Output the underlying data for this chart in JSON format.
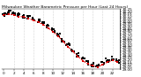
{
  "title": "Milwaukee Weather Barometric Pressure per Hour (Last 24 Hours)",
  "hours": [
    0,
    1,
    2,
    3,
    4,
    5,
    6,
    7,
    8,
    9,
    10,
    11,
    12,
    13,
    14,
    15,
    16,
    17,
    18,
    19,
    20,
    21,
    22,
    23
  ],
  "pressure_black": [
    30.15,
    30.18,
    30.16,
    30.13,
    30.11,
    30.08,
    30.05,
    30.01,
    29.96,
    29.89,
    29.81,
    29.72,
    29.61,
    29.5,
    29.4,
    29.3,
    29.21,
    29.14,
    29.1,
    29.08,
    29.13,
    29.18,
    29.22,
    29.18
  ],
  "pressure_red": [
    30.13,
    30.15,
    30.13,
    30.1,
    30.09,
    30.06,
    30.02,
    29.98,
    29.93,
    29.86,
    29.78,
    29.69,
    29.58,
    29.47,
    29.37,
    29.27,
    29.18,
    29.11,
    29.07,
    29.05,
    29.1,
    29.15,
    29.19,
    29.15
  ],
  "bg_color": "#ffffff",
  "dot_color": "#000000",
  "line_color": "#dd0000",
  "grid_color": "#999999",
  "ylim_min": 29.0,
  "ylim_max": 30.25,
  "xlabel_fontsize": 3.0,
  "ylabel_fontsize": 3.0,
  "title_fontsize": 3.2,
  "grid_hours": [
    2,
    4,
    6,
    8,
    10,
    12,
    14,
    16,
    18,
    20,
    22
  ]
}
